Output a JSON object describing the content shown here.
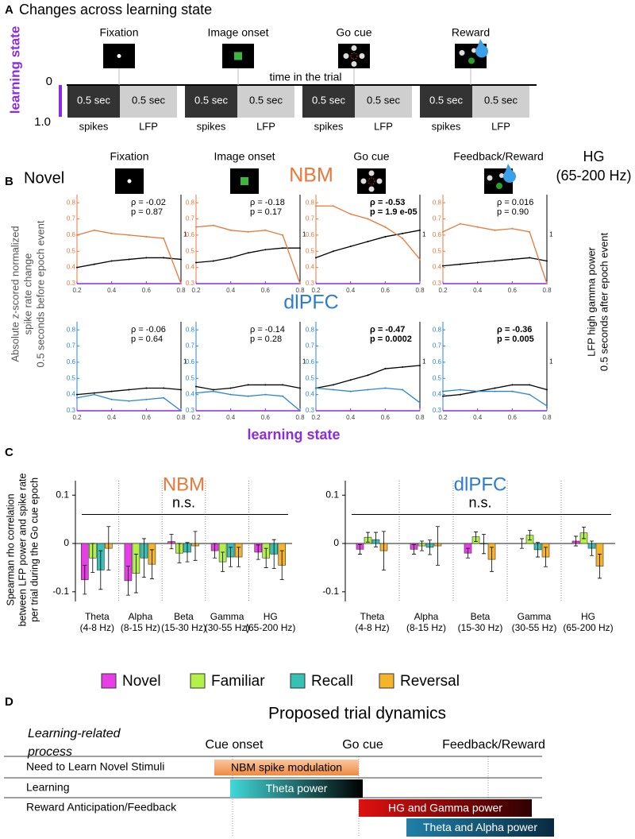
{
  "panel_a": {
    "label": "A",
    "title": "Changes across learning state",
    "axis_label": "learning state",
    "ticks": [
      "0",
      "1.0"
    ],
    "axis_note": "time in the trial",
    "events": [
      "Fixation",
      "Image onset",
      "Go cue",
      "Reward"
    ],
    "epochs": [
      {
        "duration": "0.5 sec",
        "signal": "spikes"
      },
      {
        "duration": "0.5 sec",
        "signal": "LFP"
      },
      {
        "duration": "0.5 sec",
        "signal": "spikes"
      },
      {
        "duration": "0.5 sec",
        "signal": "LFP"
      },
      {
        "duration": "0.5 sec",
        "signal": "spikes"
      },
      {
        "duration": "0.5 sec",
        "signal": "LFP"
      },
      {
        "duration": "0.5 sec",
        "signal": "spikes"
      },
      {
        "duration": "0.5 sec",
        "signal": "LFP"
      }
    ]
  },
  "panel_b": {
    "label": "B",
    "condition": "Novel",
    "regions": [
      "NBM",
      "dlPFC"
    ],
    "band": [
      "HG",
      "(65-200 Hz)"
    ],
    "events": [
      "Fixation",
      "Image onset",
      "Go cue",
      "Feedback/Reward"
    ],
    "y_label": [
      "Absolute z-scored normalized",
      "spike rate change",
      "0.5 seconds before epoch event"
    ],
    "y2_label": [
      "LFP high gamma power",
      "0.5 seconds after epoch event"
    ],
    "x_label": "learning state"
  },
  "panel_c": {
    "label": "C",
    "y_label": [
      "Spearman rho correlation",
      "between LFP power and spike rate",
      "per trial during the Go cue epoch"
    ]
  },
  "panel_d": {
    "label": "D",
    "title": "Proposed trial dynamics",
    "column_header": [
      "Learning-related",
      "process"
    ],
    "events": [
      "Cue onset",
      "Go cue",
      "Feedback/Reward"
    ],
    "rows": [
      {
        "process": "Need to Learn Novel Stimuli",
        "signals": [
          "NBM spike modulation"
        ]
      },
      {
        "process": "Learning",
        "signals": [
          "Theta power"
        ]
      },
      {
        "process": "Reward Anticipation/Feedback",
        "signals": [
          "HG and Gamma power",
          "Theta and Alpha power"
        ]
      }
    ]
  },
  "chart_data": [
    {
      "type": "line",
      "annotation": [
        "ρ = -0.02",
        "p = 0.87"
      ],
      "annotation_bold": false,
      "x": [
        0.2,
        0.3,
        0.4,
        0.5,
        0.6,
        0.7,
        0.8
      ],
      "xlim": [
        0.2,
        0.8
      ],
      "xticks": [
        0.2,
        0.4,
        0.6,
        0.8
      ],
      "ylim": [
        0.3,
        0.85
      ],
      "yticks": [
        0.3,
        0.4,
        0.5,
        0.6,
        0.7,
        0.8
      ],
      "y2_tick": "1",
      "series": [
        {
          "color": "#000000",
          "values": [
            0.4,
            0.42,
            0.44,
            0.45,
            0.46,
            0.46,
            0.45
          ]
        },
        {
          "color": "#e8783a",
          "values": [
            0.6,
            0.63,
            0.61,
            0.6,
            0.59,
            0.58,
            0.3
          ]
        }
      ]
    },
    {
      "type": "line",
      "annotation": [
        "ρ = -0.18",
        "p = 0.17"
      ],
      "annotation_bold": false,
      "x": [
        0.2,
        0.3,
        0.4,
        0.5,
        0.6,
        0.7,
        0.8
      ],
      "xlim": [
        0.2,
        0.8
      ],
      "xticks": [
        0.2,
        0.4,
        0.6,
        0.8
      ],
      "ylim": [
        0.3,
        0.85
      ],
      "yticks": [
        0.3,
        0.4,
        0.5,
        0.6,
        0.7,
        0.8
      ],
      "y2_tick": "1",
      "series": [
        {
          "color": "#000000",
          "values": [
            0.43,
            0.44,
            0.46,
            0.49,
            0.51,
            0.52,
            0.52
          ]
        },
        {
          "color": "#e8783a",
          "values": [
            0.65,
            0.66,
            0.63,
            0.62,
            0.63,
            0.6,
            0.3
          ]
        }
      ]
    },
    {
      "type": "line",
      "annotation": [
        "ρ = -0.53",
        "p = 1.9 e-05"
      ],
      "annotation_bold": true,
      "x": [
        0.2,
        0.3,
        0.4,
        0.5,
        0.6,
        0.7,
        0.8
      ],
      "xlim": [
        0.2,
        0.8
      ],
      "xticks": [
        0.2,
        0.4,
        0.6,
        0.8
      ],
      "ylim": [
        0.3,
        0.85
      ],
      "yticks": [
        0.3,
        0.4,
        0.5,
        0.6,
        0.7,
        0.8
      ],
      "y2_tick": "1",
      "series": [
        {
          "color": "#000000",
          "values": [
            0.46,
            0.5,
            0.53,
            0.56,
            0.59,
            0.61,
            0.63
          ]
        },
        {
          "color": "#e8783a",
          "values": [
            0.78,
            0.78,
            0.73,
            0.7,
            0.65,
            0.58,
            0.45
          ]
        }
      ]
    },
    {
      "type": "line",
      "annotation": [
        "ρ = 0.016",
        "p = 0.90"
      ],
      "annotation_bold": false,
      "x": [
        0.2,
        0.3,
        0.4,
        0.5,
        0.6,
        0.7,
        0.8
      ],
      "xlim": [
        0.2,
        0.8
      ],
      "xticks": [
        0.2,
        0.4,
        0.6,
        0.8
      ],
      "ylim": [
        0.3,
        0.85
      ],
      "yticks": [
        0.3,
        0.4,
        0.5,
        0.6,
        0.7,
        0.8
      ],
      "y2_tick": "1",
      "series": [
        {
          "color": "#000000",
          "values": [
            0.41,
            0.42,
            0.43,
            0.44,
            0.45,
            0.46,
            0.44
          ]
        },
        {
          "color": "#e8783a",
          "values": [
            0.62,
            0.67,
            0.65,
            0.63,
            0.64,
            0.62,
            0.3
          ]
        }
      ]
    },
    {
      "type": "line",
      "annotation": [
        "ρ = -0.06",
        "p = 0.64"
      ],
      "annotation_bold": false,
      "x": [
        0.2,
        0.3,
        0.4,
        0.5,
        0.6,
        0.7,
        0.8
      ],
      "xlim": [
        0.2,
        0.8
      ],
      "xticks": [
        0.2,
        0.4,
        0.6,
        0.8
      ],
      "ylim": [
        0.3,
        0.85
      ],
      "yticks": [
        0.3,
        0.4,
        0.5,
        0.6,
        0.7,
        0.8
      ],
      "y2_tick": "1",
      "series": [
        {
          "color": "#000000",
          "values": [
            0.4,
            0.41,
            0.42,
            0.43,
            0.44,
            0.44,
            0.43
          ]
        },
        {
          "color": "#2a86d4",
          "values": [
            0.38,
            0.4,
            0.37,
            0.36,
            0.37,
            0.38,
            0.3
          ]
        }
      ]
    },
    {
      "type": "line",
      "annotation": [
        "ρ = -0.14",
        "p = 0.28"
      ],
      "annotation_bold": false,
      "x": [
        0.2,
        0.3,
        0.4,
        0.5,
        0.6,
        0.7,
        0.8
      ],
      "xlim": [
        0.2,
        0.8
      ],
      "xticks": [
        0.2,
        0.4,
        0.6,
        0.8
      ],
      "ylim": [
        0.3,
        0.85
      ],
      "yticks": [
        0.3,
        0.4,
        0.5,
        0.6,
        0.7,
        0.8
      ],
      "y2_tick": "1",
      "series": [
        {
          "color": "#000000",
          "values": [
            0.45,
            0.43,
            0.44,
            0.46,
            0.46,
            0.46,
            0.44
          ]
        },
        {
          "color": "#2a86d4",
          "values": [
            0.41,
            0.42,
            0.4,
            0.39,
            0.4,
            0.39,
            0.3
          ]
        }
      ]
    },
    {
      "type": "line",
      "annotation": [
        "ρ = -0.47",
        "p = 0.0002"
      ],
      "annotation_bold": true,
      "x": [
        0.2,
        0.3,
        0.4,
        0.5,
        0.6,
        0.7,
        0.8
      ],
      "xlim": [
        0.2,
        0.8
      ],
      "xticks": [
        0.2,
        0.4,
        0.6,
        0.8
      ],
      "ylim": [
        0.3,
        0.85
      ],
      "yticks": [
        0.3,
        0.4,
        0.5,
        0.6,
        0.7,
        0.8
      ],
      "y2_tick": "1",
      "series": [
        {
          "color": "#000000",
          "values": [
            0.44,
            0.46,
            0.49,
            0.52,
            0.56,
            0.57,
            0.58
          ]
        },
        {
          "color": "#2a86d4",
          "values": [
            0.44,
            0.43,
            0.42,
            0.43,
            0.44,
            0.43,
            0.35
          ]
        }
      ]
    },
    {
      "type": "line",
      "annotation": [
        "ρ = -0.36",
        "p = 0.005"
      ],
      "annotation_bold": true,
      "x": [
        0.2,
        0.3,
        0.4,
        0.5,
        0.6,
        0.7,
        0.8
      ],
      "xlim": [
        0.2,
        0.8
      ],
      "xticks": [
        0.2,
        0.4,
        0.6,
        0.8
      ],
      "ylim": [
        0.3,
        0.85
      ],
      "yticks": [
        0.3,
        0.4,
        0.5,
        0.6,
        0.7,
        0.8
      ],
      "y2_tick": "1",
      "series": [
        {
          "color": "#000000",
          "values": [
            0.39,
            0.4,
            0.42,
            0.44,
            0.46,
            0.46,
            0.43
          ]
        },
        {
          "color": "#2a86d4",
          "values": [
            0.42,
            0.43,
            0.42,
            0.42,
            0.42,
            0.4,
            0.33
          ]
        }
      ]
    },
    {
      "type": "bar",
      "title": "NBM",
      "title_color": "#e8783a",
      "annotation": "n.s.",
      "categories": [
        [
          "Theta",
          "(4-8 Hz)"
        ],
        [
          "Alpha",
          "(8-15 Hz)"
        ],
        [
          "Beta",
          "(15-30 Hz)"
        ],
        [
          "Gamma",
          "(30-55 Hz)"
        ],
        [
          "HG",
          "(65-200 Hz)"
        ]
      ],
      "ylim": [
        -0.12,
        0.13
      ],
      "yticks": [
        -0.1,
        0,
        0.1
      ],
      "series": [
        {
          "name": "Novel",
          "color": "#e83ee8",
          "values": [
            -0.075,
            -0.077,
            0.004,
            -0.015,
            -0.018
          ],
          "errors": [
            0.03,
            0.03,
            0.015,
            0.015,
            0.015
          ]
        },
        {
          "name": "Familiar",
          "color": "#b4f04a",
          "values": [
            -0.03,
            -0.062,
            -0.02,
            -0.038,
            -0.03
          ],
          "errors": [
            0.03,
            0.04,
            0.02,
            0.02,
            0.02
          ]
        },
        {
          "name": "Recall",
          "color": "#35c2b4",
          "values": [
            -0.055,
            -0.03,
            -0.018,
            -0.028,
            -0.022
          ],
          "errors": [
            0.04,
            0.04,
            0.02,
            0.02,
            0.03
          ]
        },
        {
          "name": "Reversal",
          "color": "#f5b52a",
          "values": [
            -0.01,
            -0.043,
            -0.005,
            -0.028,
            -0.045
          ],
          "errors": [
            0.045,
            0.03,
            0.03,
            0.02,
            0.03
          ]
        }
      ]
    },
    {
      "type": "bar",
      "title": "dlPFC",
      "title_color": "#2a7bd4",
      "annotation": "n.s.",
      "categories": [
        [
          "Theta",
          "(4-8 Hz)"
        ],
        [
          "Alpha",
          "(8-15 Hz)"
        ],
        [
          "Beta",
          "(15-30 Hz)"
        ],
        [
          "Gamma",
          "(30-55 Hz)"
        ],
        [
          "HG",
          "(65-200 Hz)"
        ]
      ],
      "ylim": [
        -0.12,
        0.13
      ],
      "yticks": [
        -0.1,
        0,
        0.1
      ],
      "series": [
        {
          "name": "Novel",
          "color": "#e83ee8",
          "values": [
            -0.012,
            -0.012,
            -0.02,
            0,
            0.005
          ],
          "errors": [
            0.01,
            0.01,
            0.01,
            0.01,
            0.01
          ]
        },
        {
          "name": "Familiar",
          "color": "#b4f04a",
          "values": [
            0.013,
            -0.005,
            0.014,
            0.017,
            0.022
          ],
          "errors": [
            0.01,
            0.01,
            0.01,
            0.01,
            0.012
          ]
        },
        {
          "name": "Recall",
          "color": "#35c2b4",
          "values": [
            0.008,
            -0.008,
            -0.001,
            -0.013,
            -0.01
          ],
          "errors": [
            0.015,
            0.015,
            0.02,
            0.015,
            0.015
          ]
        },
        {
          "name": "Reversal",
          "color": "#f5b52a",
          "values": [
            -0.015,
            -0.005,
            -0.033,
            -0.028,
            -0.047
          ],
          "errors": [
            0.04,
            0.04,
            0.025,
            0.02,
            0.025
          ]
        }
      ]
    }
  ]
}
